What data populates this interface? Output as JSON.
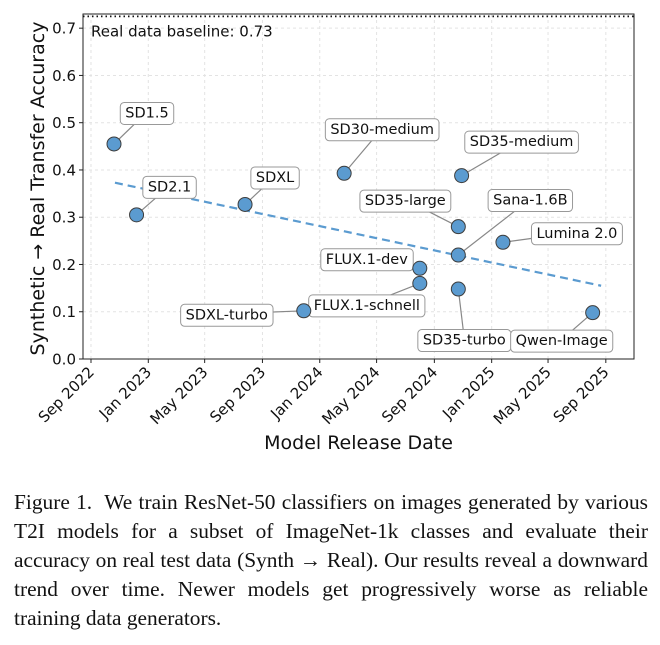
{
  "chart_data": {
    "type": "scatter",
    "title": "",
    "xlabel": "Model Release Date",
    "ylabel": "Synthetic → Real Transfer Accuracy",
    "xlim": [
      "2022-08-15",
      "2025-10-31"
    ],
    "ylim": [
      0,
      0.73
    ],
    "grid": true,
    "x_ticks": [
      {
        "date": "2022-09-01",
        "label": "Sep 2022"
      },
      {
        "date": "2023-01-01",
        "label": "Jan 2023"
      },
      {
        "date": "2023-05-01",
        "label": "May 2023"
      },
      {
        "date": "2023-09-01",
        "label": "Sep 2023"
      },
      {
        "date": "2024-01-01",
        "label": "Jan 2024"
      },
      {
        "date": "2024-05-01",
        "label": "May 2024"
      },
      {
        "date": "2024-09-01",
        "label": "Sep 2024"
      },
      {
        "date": "2025-01-01",
        "label": "Jan 2025"
      },
      {
        "date": "2025-05-01",
        "label": "May 2025"
      },
      {
        "date": "2025-09-01",
        "label": "Sep 2025"
      }
    ],
    "y_ticks": [
      {
        "value": 0.0,
        "label": "0.0"
      },
      {
        "value": 0.1,
        "label": "0.1"
      },
      {
        "value": 0.2,
        "label": "0.2"
      },
      {
        "value": 0.3,
        "label": "0.3"
      },
      {
        "value": 0.4,
        "label": "0.4"
      },
      {
        "value": 0.5,
        "label": "0.5"
      },
      {
        "value": 0.6,
        "label": "0.6"
      },
      {
        "value": 0.7,
        "label": "0.7"
      }
    ],
    "baseline": {
      "value": 0.725,
      "label": "Real data baseline: 0.73"
    },
    "trend": {
      "x": [
        "2022-10-22",
        "2025-08-22"
      ],
      "y": [
        0.373,
        0.155
      ]
    },
    "points": [
      {
        "name": "SD1.5",
        "date": "2022-10-20",
        "y": 0.455,
        "label_pos": "upper-right"
      },
      {
        "name": "SD2.1",
        "date": "2022-12-07",
        "y": 0.305,
        "label_pos": "upper-right"
      },
      {
        "name": "SDXL",
        "date": "2023-07-26",
        "y": 0.327,
        "label_pos": "upper-right"
      },
      {
        "name": "SDXL-turbo",
        "date": "2023-11-28",
        "y": 0.102,
        "label_pos": "left"
      },
      {
        "name": "SD30-medium",
        "date": "2024-02-22",
        "y": 0.393,
        "label_pos": "top"
      },
      {
        "name": "FLUX.1-dev",
        "date": "2024-08-01",
        "y": 0.192,
        "label_pos": "left"
      },
      {
        "name": "FLUX.1-schnell",
        "date": "2024-08-01",
        "y": 0.16,
        "label_pos": "lower-left"
      },
      {
        "name": "SD35-large",
        "date": "2024-10-22",
        "y": 0.28,
        "label_pos": "upper-left"
      },
      {
        "name": "SD35-medium",
        "date": "2024-10-29",
        "y": 0.388,
        "label_pos": "upper-right"
      },
      {
        "name": "SD35-turbo",
        "date": "2024-10-22",
        "y": 0.148,
        "label_pos": "bottom"
      },
      {
        "name": "Sana-1.6B",
        "date": "2024-10-22",
        "y": 0.22,
        "label_pos": "upper-right"
      },
      {
        "name": "Lumina 2.0",
        "date": "2025-01-25",
        "y": 0.247,
        "label_pos": "right"
      },
      {
        "name": "Qwen-Image",
        "date": "2025-08-04",
        "y": 0.098,
        "label_pos": "lower-left"
      }
    ],
    "colors": {
      "point": "#5b9bd0",
      "point_edge": "#3d3d3d",
      "trend": "#5b9bd0",
      "baseline": "#111111"
    }
  },
  "caption": {
    "lead": "Figure 1.",
    "text": "We train ResNet-50 classifiers on images generated by various T2I models for a subset of ImageNet-1k classes and evaluate their accuracy on real test data (Synth → Real). Our results reveal a downward trend over time. Newer models get progressively worse as reliable training data generators."
  }
}
